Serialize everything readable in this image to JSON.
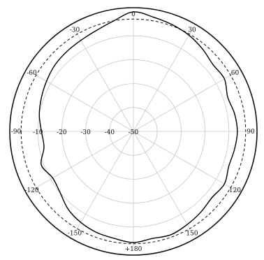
{
  "chart_data": {
    "type": "polar-line",
    "radial_axis": {
      "range": [
        -50,
        0
      ],
      "ticks": [
        -10,
        -20,
        -30,
        -40,
        -50
      ],
      "tick_labels": [
        "-10",
        "-20",
        "-30",
        "-40",
        "-50"
      ]
    },
    "angular_axis": {
      "ticks": [
        0,
        30,
        60,
        90,
        120,
        150,
        180,
        -150,
        -120,
        -90,
        -60,
        -30
      ],
      "tick_labels": [
        "0",
        "30",
        "60",
        "90",
        "120",
        "150",
        "+180",
        "-150",
        "-120",
        "-90",
        "-60",
        "-30"
      ]
    },
    "reference_level_dB": -3,
    "grid": true,
    "series": [
      {
        "style": "solid",
        "angles": [
          0,
          10,
          20,
          30,
          40,
          50,
          60,
          70,
          80,
          90,
          100,
          110,
          120,
          130,
          140,
          150,
          160,
          170,
          180,
          190,
          200,
          210,
          220,
          230,
          240,
          250,
          260,
          270,
          280,
          290,
          300,
          310,
          320,
          330,
          340,
          350
        ],
        "values": [
          0,
          -1.5,
          -2.5,
          -3.5,
          -5,
          -6.5,
          -6,
          -8,
          -7,
          -6.5,
          -7,
          -7.5,
          -6,
          -7,
          -6,
          -5,
          -4,
          -4.5,
          -3.5,
          -4.5,
          -5,
          -6,
          -7.5,
          -10,
          -11,
          -9,
          -12,
          -11.5,
          -10,
          -9,
          -8,
          -7,
          -6.5,
          -6,
          -5,
          -3
        ]
      }
    ]
  }
}
